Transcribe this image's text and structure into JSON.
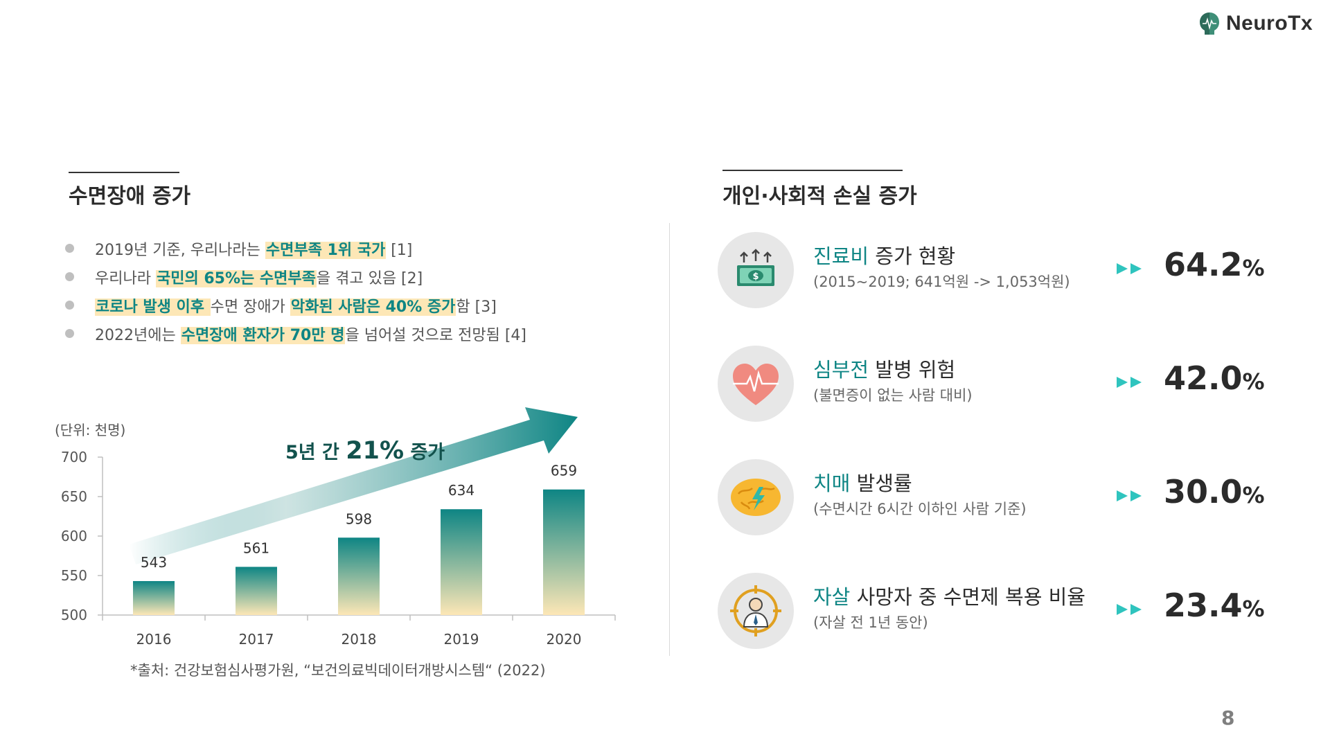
{
  "logo": {
    "text": "NeuroTx"
  },
  "page_number": "8",
  "left": {
    "title": "수면장애 증가",
    "bullets": [
      [
        {
          "t": "2019년 기준, 우리나라는 ",
          "h": false
        },
        {
          "t": "수면부족 1위 국가",
          "h": true
        },
        {
          "t": " [1]",
          "h": false
        }
      ],
      [
        {
          "t": "우리나라 ",
          "h": false
        },
        {
          "t": "국민의 65%는 수면부족",
          "h": true
        },
        {
          "t": "을 겪고 있음 [2]",
          "h": false
        }
      ],
      [
        {
          "t": "코로나 발생 이후 ",
          "h": true
        },
        {
          "t": "수면 장애가 ",
          "h": false
        },
        {
          "t": "악화된 사람은 40% 증가",
          "h": true
        },
        {
          "t": "함 [3]",
          "h": false
        }
      ],
      [
        {
          "t": "2022년에는 ",
          "h": false
        },
        {
          "t": "수면장애 환자가 70만 명",
          "h": true
        },
        {
          "t": "을 넘어설 것으로 전망됨 [4]",
          "h": false
        }
      ]
    ],
    "unit_label": "(단위: 천명)",
    "source": "*출처: 건강보험심사평가원, “보건의료빅데이터개방시스템“ (2022)"
  },
  "chart_data": {
    "type": "bar",
    "categories": [
      "2016",
      "2017",
      "2018",
      "2019",
      "2020"
    ],
    "values": [
      543,
      561,
      598,
      634,
      659
    ],
    "ylim": [
      500,
      700
    ],
    "yticks": [
      500,
      550,
      600,
      650,
      700
    ],
    "unit": "(단위: 천명)",
    "annotation": {
      "prefix": "5년 간 ",
      "value": "21%",
      "suffix": " 증가"
    },
    "bar_gradient": [
      "#0e8584",
      "#fde7b6"
    ]
  },
  "right": {
    "title": "개인·사회적 손실 증가",
    "items": [
      {
        "icon": "money-up-icon",
        "accent": "진료비",
        "title": " 증가 현황",
        "sub": "(2015~2019; 641억원 -> 1,053억원)",
        "value": "64.2",
        "unit": "%"
      },
      {
        "icon": "heart-pulse-icon",
        "accent": "심부전",
        "title": " 발병 위험",
        "sub": "(불면증이 없는 사람 대비)",
        "value": "42.0",
        "unit": "%"
      },
      {
        "icon": "brain-lightning-icon",
        "accent": "치매",
        "title": " 발생률",
        "sub": "(수면시간 6시간 이하인 사람 기준)",
        "value": "30.0",
        "unit": "%"
      },
      {
        "icon": "person-target-icon",
        "accent": "자살",
        "title": " 사망자 중 수면제 복용 비율",
        "sub": "(자살 전 1년 동안)",
        "value": "23.4",
        "unit": "%"
      }
    ]
  },
  "colors": {
    "accent": "#0e8584",
    "highlight": "#fde7b6",
    "arrow": "#2fc4be"
  }
}
